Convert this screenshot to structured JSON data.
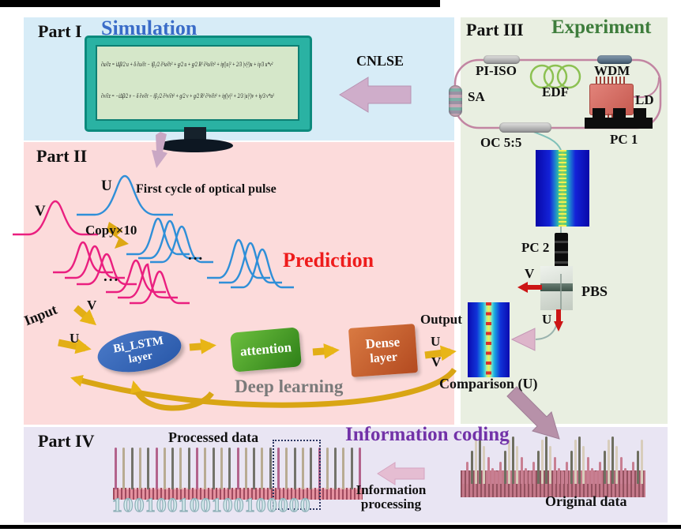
{
  "part1": {
    "label": "Part I",
    "title": "Simulation",
    "cnlse_label": "CNLSE",
    "equation1": "∂u/∂z = iΔβ/2 u + δ ∂u/∂t − iβ₂/2 ∂²u/∂t² + g/2 u + g/2 R² ∂²u/∂t² + iγ(|u|² + 2/3 |v|²)u + iγ/3 u*v²",
    "equation2": "∂v/∂z = −iΔβ/2 v − δ ∂v/∂t − iβ₂/2 ∂²v/∂t² + g/2 v + g/2 R² ∂²v/∂t² + iγ(|v|² + 2/3 |u|²)v + iγ/3 v*u²"
  },
  "part2": {
    "label": "Part II",
    "u_label": "U",
    "v_label": "V",
    "first_cycle": "First cycle of optical pulse",
    "copy_label": "Copy×10",
    "dots": "...",
    "prediction": "Prediction",
    "input_label": "Input",
    "input_v": "V",
    "input_u": "U",
    "bilstm_line1": "Bi_LSTM",
    "bilstm_line2": "layer",
    "attention": "attention",
    "dense_line1": "Dense",
    "dense_line2": "layer",
    "output_label": "Output",
    "output_u": "U",
    "output_v": "V",
    "deep_learning": "Deep learning"
  },
  "part3": {
    "label": "Part III",
    "title": "Experiment",
    "pi_iso": "PI-ISO",
    "wdm": "WDM",
    "sa": "SA",
    "edf": "EDF",
    "ld": "LD",
    "oc": "OC 5:5",
    "pc1": "PC 1",
    "pc2": "PC 2",
    "pbs": "PBS",
    "v_out": "V",
    "u_out": "U",
    "comparison": "Comparison (U)"
  },
  "part4": {
    "label": "Part IV",
    "title": "Information coding",
    "processed_label": "Processed data",
    "binary": "100100100100100000",
    "info_line1": "Information",
    "info_line2": "processing",
    "original_label": "Original data"
  },
  "colors": {
    "simulation_title": "#3a6cc8",
    "experiment_title": "#3e7d3c",
    "prediction": "#ee1c1c",
    "information_coding": "#7232a8",
    "gold_arrow": "#d9a514",
    "fiber_ring": "#c285a2",
    "pulse_u": "#2f8fd8",
    "pulse_v": "#ea1f7f"
  }
}
